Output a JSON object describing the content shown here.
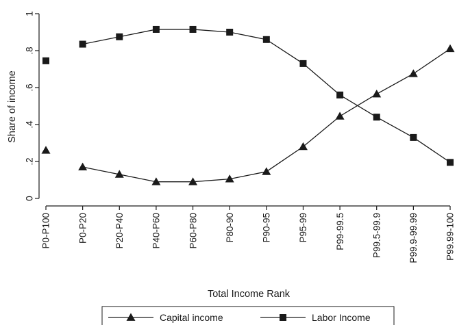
{
  "chart_data": {
    "type": "line",
    "xlabel": "Total Income Rank",
    "ylabel": "Share of income",
    "ylim": [
      0,
      1
    ],
    "yticks": [
      {
        "value": 0,
        "label": "0"
      },
      {
        "value": 0.2,
        "label": ".2"
      },
      {
        "value": 0.4,
        "label": ".4"
      },
      {
        "value": 0.6,
        "label": ".6"
      },
      {
        "value": 0.8,
        "label": ".8"
      },
      {
        "value": 1,
        "label": "1"
      }
    ],
    "categories": [
      "P0-P100",
      "P0-P20",
      "P20-P40",
      "P40-P60",
      "P60-P80",
      "P80-90",
      "P90-95",
      "P95-99",
      "P99-99.5",
      "P99.5-99.9",
      "P99.9-99.99",
      "P99.99-100"
    ],
    "grid": false,
    "legend_position": "bottom",
    "series": [
      {
        "name": "Capital income",
        "marker": "triangle",
        "values": [
          0.26,
          0.17,
          0.13,
          0.09,
          0.09,
          0.105,
          0.145,
          0.28,
          0.445,
          0.565,
          0.675,
          0.81
        ],
        "connected_from_index": 1
      },
      {
        "name": "Labor Income",
        "marker": "square",
        "values": [
          0.745,
          0.835,
          0.875,
          0.915,
          0.915,
          0.9,
          0.86,
          0.73,
          0.56,
          0.44,
          0.33,
          0.195
        ],
        "connected_from_index": 1
      }
    ]
  }
}
